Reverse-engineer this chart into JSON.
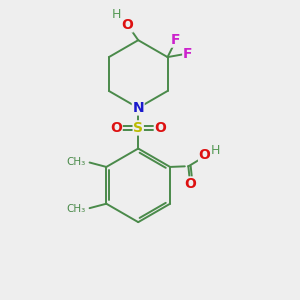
{
  "background_color": "#eeeeee",
  "bond_color": "#4a8a4a",
  "N_color": "#1a1acc",
  "O_color": "#dd1111",
  "F_color": "#cc22cc",
  "S_color": "#bbbb00",
  "H_color": "#559955",
  "figsize": [
    3.0,
    3.0
  ],
  "dpi": 100,
  "xlim": [
    0,
    10
  ],
  "ylim": [
    0,
    10
  ]
}
